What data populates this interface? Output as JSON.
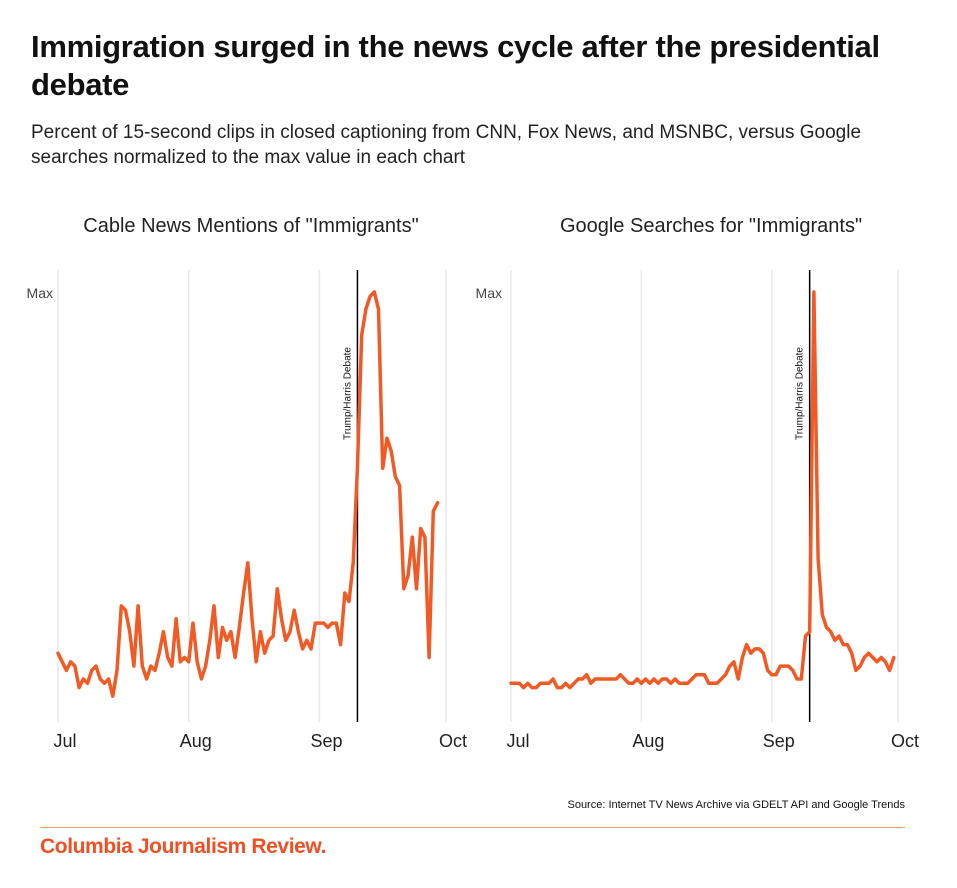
{
  "title": "Immigration surged in the news cycle after the presidential debate",
  "subtitle": "Percent of 15-second clips in closed captioning from CNN, Fox News, and MSNBC, versus Google searches normalized to the max value in each chart",
  "source": "Source: Internet TV News Archive via GDELT API and Google Trends",
  "logo": "Columbia Journalism Review.",
  "colors": {
    "line": "#f15a24",
    "annotation": "#000000",
    "grid": "#e8e8e8",
    "brand": "#ef4f23"
  },
  "chart_data": [
    {
      "type": "line",
      "title": "Cable News Mentions of \"Immigrants\"",
      "y_tick_label": "Max",
      "ylim": [
        0,
        1
      ],
      "xlim": [
        "Jul 1",
        "Oct 1"
      ],
      "x_ticks": [
        "Jul",
        "Aug",
        "Sep",
        "Oct"
      ],
      "grid": "vertical",
      "annotation": {
        "x": "Sep 10",
        "label": "Trump/Harris Debate"
      },
      "x": [
        "Jul 1",
        "Jul 2",
        "Jul 3",
        "Jul 4",
        "Jul 5",
        "Jul 6",
        "Jul 7",
        "Jul 8",
        "Jul 9",
        "Jul 10",
        "Jul 11",
        "Jul 12",
        "Jul 13",
        "Jul 14",
        "Jul 15",
        "Jul 16",
        "Jul 17",
        "Jul 18",
        "Jul 19",
        "Jul 20",
        "Jul 21",
        "Jul 22",
        "Jul 23",
        "Jul 24",
        "Jul 25",
        "Jul 26",
        "Jul 27",
        "Jul 28",
        "Jul 29",
        "Jul 30",
        "Jul 31",
        "Aug 1",
        "Aug 2",
        "Aug 3",
        "Aug 4",
        "Aug 5",
        "Aug 6",
        "Aug 7",
        "Aug 8",
        "Aug 9",
        "Aug 10",
        "Aug 11",
        "Aug 12",
        "Aug 13",
        "Aug 14",
        "Aug 15",
        "Aug 16",
        "Aug 17",
        "Aug 18",
        "Aug 19",
        "Aug 20",
        "Aug 21",
        "Aug 22",
        "Aug 23",
        "Aug 24",
        "Aug 25",
        "Aug 26",
        "Aug 27",
        "Aug 28",
        "Aug 29",
        "Aug 30",
        "Aug 31",
        "Sep 1",
        "Sep 2",
        "Sep 3",
        "Sep 4",
        "Sep 5",
        "Sep 6",
        "Sep 7",
        "Sep 8",
        "Sep 9",
        "Sep 10",
        "Sep 11",
        "Sep 12",
        "Sep 13",
        "Sep 14",
        "Sep 15",
        "Sep 16",
        "Sep 17",
        "Sep 18",
        "Sep 19",
        "Sep 20",
        "Sep 21",
        "Sep 22",
        "Sep 23",
        "Sep 24",
        "Sep 25",
        "Sep 26",
        "Sep 27",
        "Sep 28",
        "Sep 29"
      ],
      "y": [
        0.16,
        0.14,
        0.12,
        0.14,
        0.13,
        0.08,
        0.1,
        0.09,
        0.12,
        0.13,
        0.1,
        0.09,
        0.1,
        0.06,
        0.12,
        0.27,
        0.26,
        0.21,
        0.13,
        0.27,
        0.13,
        0.1,
        0.13,
        0.12,
        0.16,
        0.21,
        0.15,
        0.13,
        0.24,
        0.14,
        0.15,
        0.14,
        0.23,
        0.14,
        0.1,
        0.13,
        0.19,
        0.27,
        0.15,
        0.22,
        0.19,
        0.21,
        0.15,
        0.22,
        0.3,
        0.37,
        0.24,
        0.14,
        0.21,
        0.16,
        0.19,
        0.2,
        0.31,
        0.24,
        0.19,
        0.21,
        0.26,
        0.21,
        0.17,
        0.19,
        0.17,
        0.23,
        0.23,
        0.23,
        0.22,
        0.23,
        0.23,
        0.18,
        0.3,
        0.28,
        0.37,
        0.59,
        0.9,
        0.96,
        0.99,
        1.0,
        0.96,
        0.59,
        0.66,
        0.63,
        0.57,
        0.55,
        0.31,
        0.34,
        0.43,
        0.31,
        0.45,
        0.43,
        0.15,
        0.49,
        0.51
      ]
    },
    {
      "type": "line",
      "title": "Google Searches for \"Immigrants\"",
      "y_tick_label": "Max",
      "ylim": [
        0,
        1
      ],
      "xlim": [
        "Jul 1",
        "Oct 1"
      ],
      "x_ticks": [
        "Jul",
        "Aug",
        "Sep",
        "Oct"
      ],
      "grid": "vertical",
      "annotation": {
        "x": "Sep 10",
        "label": "Trump/Harris Debate"
      },
      "x": [
        "Jul 1",
        "Jul 2",
        "Jul 3",
        "Jul 4",
        "Jul 5",
        "Jul 6",
        "Jul 7",
        "Jul 8",
        "Jul 9",
        "Jul 10",
        "Jul 11",
        "Jul 12",
        "Jul 13",
        "Jul 14",
        "Jul 15",
        "Jul 16",
        "Jul 17",
        "Jul 18",
        "Jul 19",
        "Jul 20",
        "Jul 21",
        "Jul 22",
        "Jul 23",
        "Jul 24",
        "Jul 25",
        "Jul 26",
        "Jul 27",
        "Jul 28",
        "Jul 29",
        "Jul 30",
        "Jul 31",
        "Aug 1",
        "Aug 2",
        "Aug 3",
        "Aug 4",
        "Aug 5",
        "Aug 6",
        "Aug 7",
        "Aug 8",
        "Aug 9",
        "Aug 10",
        "Aug 11",
        "Aug 12",
        "Aug 13",
        "Aug 14",
        "Aug 15",
        "Aug 16",
        "Aug 17",
        "Aug 18",
        "Aug 19",
        "Aug 20",
        "Aug 21",
        "Aug 22",
        "Aug 23",
        "Aug 24",
        "Aug 25",
        "Aug 26",
        "Aug 27",
        "Aug 28",
        "Aug 29",
        "Aug 30",
        "Aug 31",
        "Sep 1",
        "Sep 2",
        "Sep 3",
        "Sep 4",
        "Sep 5",
        "Sep 6",
        "Sep 7",
        "Sep 8",
        "Sep 9",
        "Sep 10",
        "Sep 11",
        "Sep 12",
        "Sep 13",
        "Sep 14",
        "Sep 15",
        "Sep 16",
        "Sep 17",
        "Sep 18",
        "Sep 19",
        "Sep 20",
        "Sep 21",
        "Sep 22",
        "Sep 23",
        "Sep 24",
        "Sep 25",
        "Sep 26",
        "Sep 27",
        "Sep 28",
        "Sep 29",
        "Sep 30"
      ],
      "y": [
        0.09,
        0.09,
        0.09,
        0.08,
        0.09,
        0.08,
        0.08,
        0.09,
        0.09,
        0.09,
        0.1,
        0.08,
        0.08,
        0.09,
        0.08,
        0.09,
        0.1,
        0.1,
        0.11,
        0.09,
        0.1,
        0.1,
        0.1,
        0.1,
        0.1,
        0.1,
        0.11,
        0.1,
        0.09,
        0.09,
        0.1,
        0.09,
        0.1,
        0.09,
        0.1,
        0.09,
        0.1,
        0.1,
        0.09,
        0.1,
        0.09,
        0.09,
        0.09,
        0.1,
        0.11,
        0.11,
        0.11,
        0.09,
        0.09,
        0.09,
        0.1,
        0.11,
        0.13,
        0.14,
        0.1,
        0.15,
        0.18,
        0.16,
        0.17,
        0.17,
        0.16,
        0.12,
        0.11,
        0.11,
        0.13,
        0.13,
        0.13,
        0.12,
        0.1,
        0.1,
        0.2,
        0.21,
        1.0,
        0.38,
        0.25,
        0.22,
        0.21,
        0.19,
        0.2,
        0.18,
        0.18,
        0.16,
        0.12,
        0.13,
        0.15,
        0.16,
        0.15,
        0.14,
        0.15,
        0.14,
        0.12,
        0.15
      ]
    }
  ]
}
